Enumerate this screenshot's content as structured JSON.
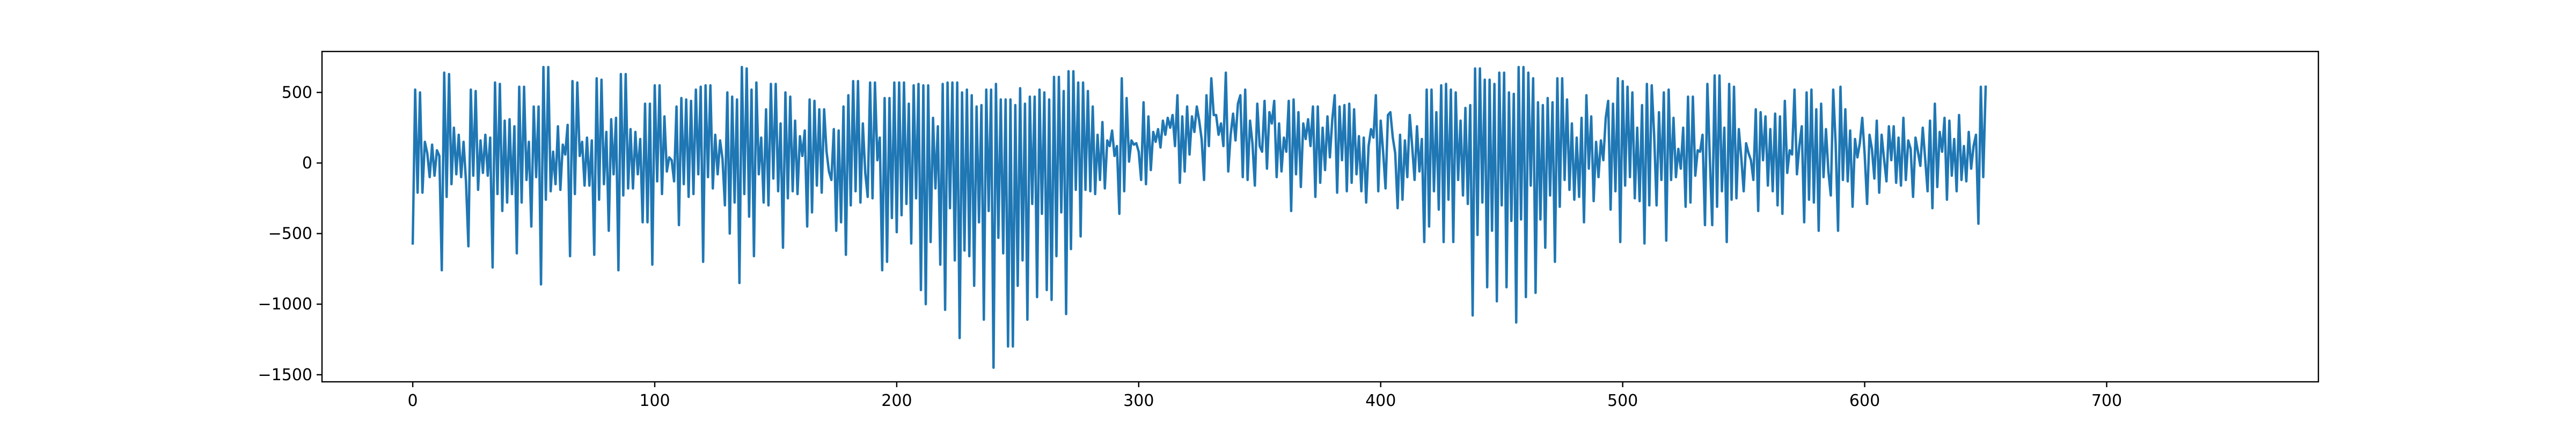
{
  "chart_data": {
    "type": "line",
    "title": "",
    "xlabel": "",
    "ylabel": "",
    "xlim": [
      -37.5,
      787.5
    ],
    "ylim": [
      -1550,
      790
    ],
    "x_ticks": [
      0,
      100,
      200,
      300,
      400,
      500,
      600,
      700
    ],
    "y_ticks": [
      -1500,
      -1000,
      -500,
      0,
      500
    ],
    "grid": false,
    "legend": "none",
    "series": [
      {
        "color": "#1f77b4",
        "x_start": 0,
        "x_step": 1,
        "values": [
          -570,
          520,
          -210,
          500,
          -210,
          150,
          70,
          -100,
          130,
          -90,
          90,
          50,
          -760,
          640,
          -240,
          630,
          -150,
          250,
          -80,
          200,
          -100,
          150,
          -130,
          -590,
          520,
          -90,
          510,
          -190,
          160,
          -70,
          200,
          -90,
          180,
          -740,
          570,
          -220,
          560,
          -340,
          300,
          -280,
          310,
          -220,
          260,
          -640,
          540,
          -280,
          540,
          -120,
          150,
          -450,
          400,
          -100,
          400,
          -860,
          680,
          -260,
          680,
          -200,
          80,
          -150,
          260,
          -190,
          130,
          60,
          270,
          -660,
          580,
          -220,
          570,
          50,
          150,
          -160,
          180,
          -160,
          160,
          -650,
          600,
          -260,
          590,
          -150,
          220,
          -480,
          310,
          -80,
          320,
          -760,
          630,
          -230,
          630,
          -180,
          240,
          -180,
          220,
          -80,
          170,
          -420,
          420,
          -420,
          420,
          -720,
          550,
          -130,
          550,
          -220,
          330,
          -60,
          40,
          20,
          -130,
          400,
          -440,
          460,
          -150,
          450,
          -240,
          440,
          -220,
          520,
          -80,
          540,
          -700,
          550,
          -100,
          550,
          -180,
          200,
          -80,
          160,
          30,
          -300,
          500,
          -500,
          470,
          -280,
          450,
          -850,
          680,
          -220,
          670,
          -380,
          520,
          -660,
          570,
          -80,
          180,
          -280,
          380,
          -300,
          560,
          -110,
          560,
          -200,
          280,
          -600,
          500,
          -250,
          470,
          -200,
          300,
          -220,
          190,
          50,
          230,
          -450,
          450,
          -350,
          440,
          -160,
          380,
          -210,
          380,
          80,
          -60,
          -120,
          240,
          -480,
          230,
          -420,
          400,
          -650,
          480,
          -300,
          580,
          -200,
          580,
          -280,
          280,
          -70,
          -240,
          570,
          -250,
          570,
          20,
          180,
          -760,
          460,
          -700,
          460,
          -390,
          570,
          -490,
          570,
          -370,
          570,
          -290,
          420,
          -570,
          550,
          -250,
          560,
          -900,
          550,
          -1000,
          550,
          -560,
          320,
          -180,
          260,
          -720,
          560,
          -1040,
          570,
          -320,
          570,
          -690,
          570,
          -1240,
          500,
          -620,
          520,
          -660,
          480,
          -870,
          400,
          -420,
          410,
          -1110,
          520,
          -340,
          520,
          -1450,
          560,
          -530,
          450,
          -640,
          450,
          -1300,
          450,
          -1300,
          410,
          -870,
          530,
          -690,
          420,
          -1110,
          470,
          -290,
          470,
          -950,
          520,
          -360,
          500,
          -900,
          450,
          -970,
          610,
          -660,
          610,
          -350,
          510,
          -1070,
          650,
          -610,
          650,
          -190,
          570,
          -520,
          570,
          -190,
          510,
          -200,
          400,
          -220,
          200,
          -120,
          290,
          -180,
          160,
          120,
          230,
          50,
          120,
          -360,
          600,
          -200,
          460,
          10,
          160,
          130,
          140,
          80,
          -120,
          430,
          -150,
          330,
          -50,
          220,
          150,
          240,
          110,
          300,
          200,
          320,
          250,
          340,
          120,
          480,
          -140,
          330,
          -60,
          400,
          60,
          330,
          220,
          400,
          300,
          170,
          -120,
          480,
          120,
          600,
          340,
          340,
          200,
          280,
          120,
          640,
          -60,
          200,
          350,
          160,
          420,
          480,
          -100,
          520,
          -120,
          300,
          140,
          -160,
          420,
          120,
          80,
          440,
          -40,
          360,
          280,
          440,
          -100,
          280,
          -60,
          180,
          80,
          440,
          -340,
          450,
          -80,
          360,
          -170,
          280,
          170,
          310,
          120,
          400,
          -240,
          400,
          -140,
          250,
          -50,
          330,
          40,
          310,
          480,
          -210,
          400,
          20,
          410,
          -200,
          420,
          -140,
          380,
          -80,
          190,
          -200,
          180,
          -280,
          120,
          240,
          180,
          480,
          -200,
          300,
          80,
          -180,
          340,
          360,
          180,
          70,
          -320,
          200,
          -260,
          160,
          -100,
          340,
          120,
          -120,
          260,
          -60,
          170,
          -560,
          520,
          -450,
          520,
          -200,
          360,
          -330,
          550,
          -560,
          560,
          -260,
          520,
          -560,
          500,
          -120,
          300,
          -230,
          390,
          -290,
          410,
          -1080,
          670,
          -510,
          670,
          -280,
          590,
          -880,
          590,
          -480,
          560,
          -980,
          640,
          -300,
          640,
          -880,
          500,
          -410,
          490,
          -1130,
          680,
          -400,
          680,
          -950,
          640,
          -160,
          600,
          -920,
          430,
          -400,
          410,
          -600,
          460,
          -230,
          430,
          -700,
          600,
          -310,
          600,
          -120,
          450,
          -190,
          280,
          -260,
          180,
          -240,
          320,
          -420,
          480,
          -40,
          330,
          -270,
          150,
          -100,
          160,
          20,
          320,
          440,
          -330,
          420,
          -200,
          600,
          -560,
          580,
          -160,
          540,
          -100,
          500,
          -250,
          250,
          -270,
          410,
          -570,
          560,
          -300,
          550,
          200,
          -300,
          360,
          -120,
          500,
          -550,
          520,
          -120,
          320,
          -100,
          100,
          -40,
          250,
          -310,
          470,
          -280,
          470,
          -90,
          90,
          80,
          200,
          -440,
          560,
          40,
          -440,
          620,
          -310,
          620,
          -200,
          250,
          -560,
          560,
          -260,
          540,
          -250,
          240,
          40,
          -200,
          140,
          70,
          20,
          -120,
          380,
          -340,
          360,
          20,
          330,
          -160,
          240,
          -200,
          350,
          -300,
          330,
          -360,
          440,
          -70,
          90,
          60,
          520,
          -80,
          120,
          260,
          -420,
          500,
          -260,
          520,
          -280,
          380,
          -480,
          420,
          -100,
          240,
          -60,
          -230,
          520,
          140,
          -480,
          540,
          -120,
          380,
          -130,
          230,
          -310,
          170,
          40,
          140,
          320,
          60,
          -290,
          200,
          100,
          -110,
          300,
          -210,
          200,
          30,
          -130,
          260,
          20,
          260,
          -140,
          180,
          -160,
          320,
          -120,
          160,
          100,
          -240,
          180,
          80,
          -20,
          250,
          30,
          -200,
          300,
          -320,
          420,
          -170,
          220,
          80,
          320,
          -260,
          300,
          -90,
          170,
          -200,
          340,
          -120,
          120,
          -130,
          220,
          -40,
          120,
          200,
          -430,
          540,
          -100,
          540
        ]
      }
    ]
  }
}
